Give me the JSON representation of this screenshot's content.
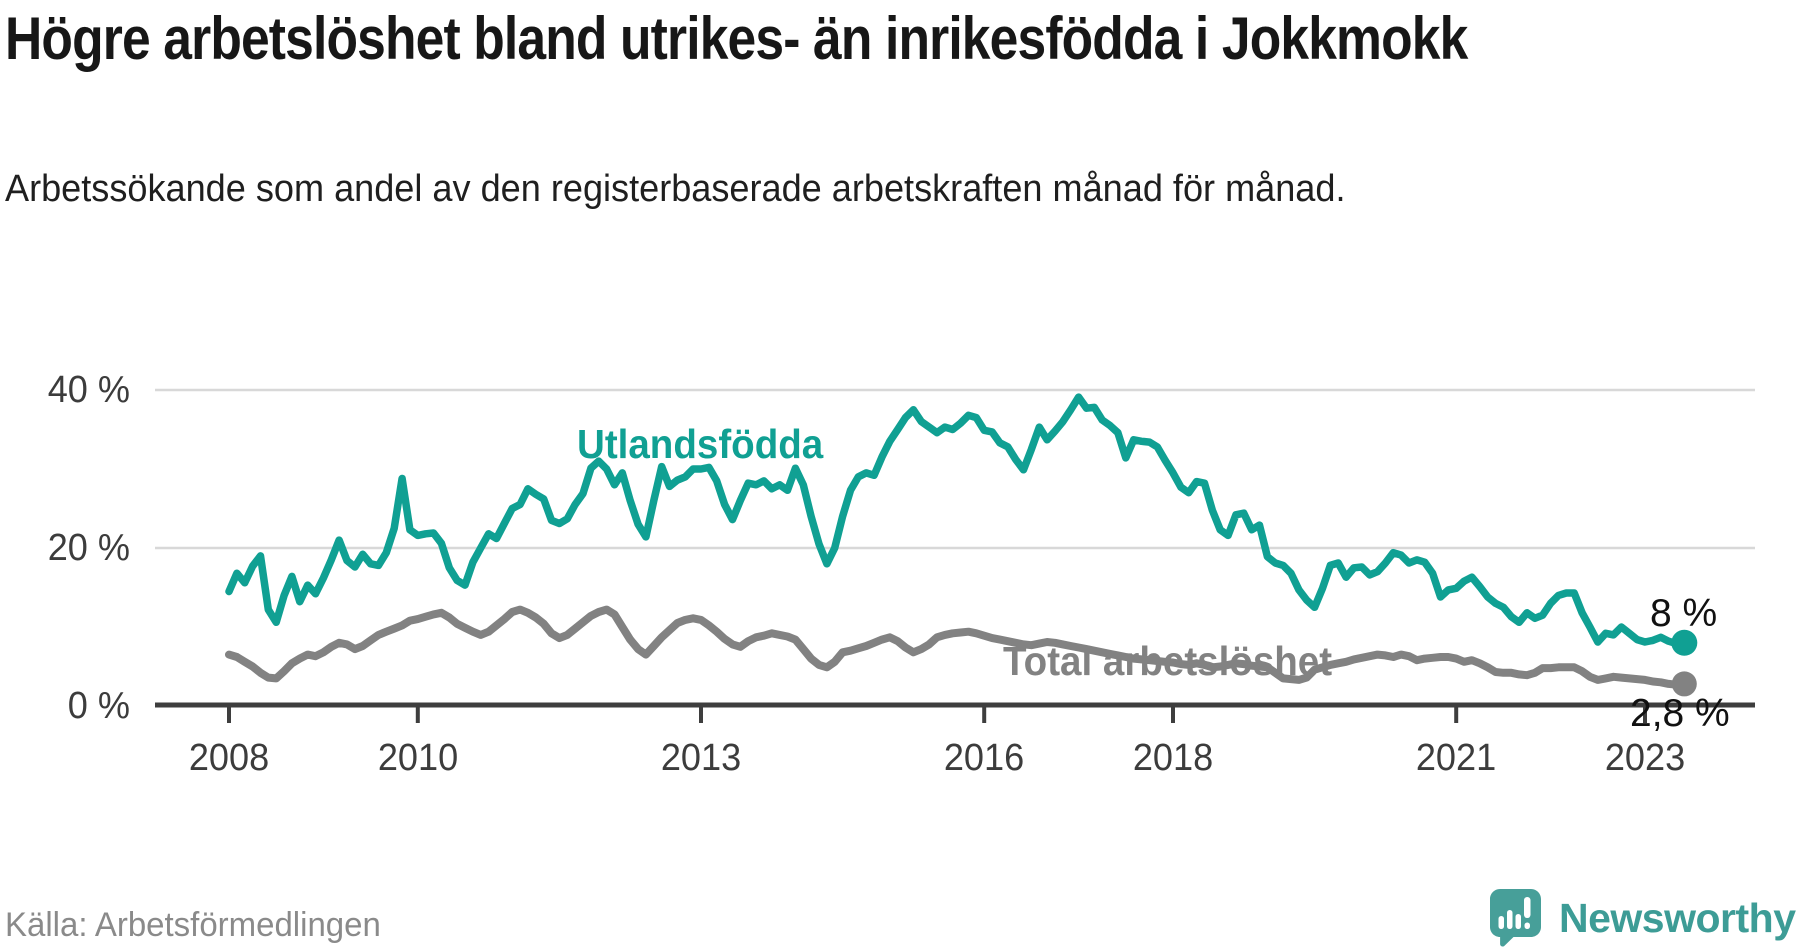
{
  "title": "Högre arbetslöshet bland utrikes- än inrikesfödda i Jokkmokk",
  "subtitle": "Arbetssökande som andel av den registerbaserade arbetskraften månad för månad.",
  "source": "Källa: Arbetsförmedlingen",
  "brand": {
    "name": "Newsworthy",
    "icon_color": "#479f99",
    "text_color": "#3d9c96"
  },
  "colors": {
    "foreign_line": "#10a093",
    "total_line": "#828282",
    "grid": "#d8d8d8",
    "axis": "#3e3e3e",
    "text": "#171717",
    "annotation": "#111111"
  },
  "chart_data": {
    "type": "line",
    "title": "Högre arbetslöshet bland utrikes- än inrikesfödda i Jokkmokk",
    "subtitle": "Arbetssökande som andel av den registerbaserade arbetskraften månad för månad.",
    "unit": "percent of registered labour force",
    "frequency": "monthly",
    "x_start": "2008-01",
    "x_end": "2023-06",
    "ylim": [
      0,
      42
    ],
    "grid": "horizontal",
    "legend_position": "inline-labels",
    "y_ticks": [
      {
        "value": 0,
        "label": "0 %"
      },
      {
        "value": 20,
        "label": "20 %"
      },
      {
        "value": 40,
        "label": "40 %"
      }
    ],
    "x_ticks": [
      {
        "year": 2008,
        "label": "2008"
      },
      {
        "year": 2010,
        "label": "2010"
      },
      {
        "year": 2013,
        "label": "2013"
      },
      {
        "year": 2016,
        "label": "2016"
      },
      {
        "year": 2018,
        "label": "2018"
      },
      {
        "year": 2021,
        "label": "2021"
      },
      {
        "year": 2023,
        "label": "2023"
      }
    ],
    "series": [
      {
        "name": "Utlandsfödda",
        "color": "#10a093",
        "end_label": "8 %",
        "end_value": 8.0,
        "values": [
          14.5,
          16.8,
          15.6,
          17.7,
          19.0,
          12.2,
          10.6,
          14.0,
          16.4,
          13.2,
          15.3,
          14.2,
          16.2,
          18.5,
          21.0,
          18.4,
          17.6,
          19.2,
          18.0,
          17.8,
          19.4,
          22.5,
          28.8,
          22.3,
          21.6,
          21.8,
          21.9,
          20.6,
          17.5,
          15.9,
          15.3,
          18.2,
          20.0,
          21.8,
          21.2,
          23.1,
          25.0,
          25.5,
          27.5,
          26.8,
          26.2,
          23.5,
          23.1,
          23.7,
          25.5,
          26.9,
          30.1,
          31.0,
          30.0,
          28.0,
          29.5,
          26.0,
          23.0,
          21.4,
          26.0,
          30.3,
          27.8,
          28.6,
          29.0,
          30.0,
          30.0,
          30.2,
          28.5,
          25.5,
          23.6,
          26.0,
          28.2,
          28.0,
          28.5,
          27.5,
          28.0,
          27.3,
          30.1,
          28.0,
          24.0,
          20.5,
          18.0,
          20.0,
          24.0,
          27.3,
          29.0,
          29.5,
          29.2,
          31.5,
          33.5,
          35.0,
          36.5,
          37.5,
          36.0,
          35.3,
          34.6,
          35.3,
          35.0,
          35.8,
          36.8,
          36.5,
          34.9,
          34.7,
          33.3,
          32.8,
          31.2,
          29.9,
          32.5,
          35.3,
          33.7,
          34.8,
          36.0,
          37.5,
          39.1,
          37.7,
          37.8,
          36.2,
          35.5,
          34.6,
          31.4,
          33.7,
          33.5,
          33.4,
          32.8,
          31.1,
          29.5,
          27.7,
          27.0,
          28.4,
          28.2,
          24.8,
          22.3,
          21.6,
          24.2,
          24.4,
          22.3,
          22.9,
          18.9,
          18.1,
          17.8,
          16.8,
          14.7,
          13.4,
          12.5,
          14.9,
          17.8,
          18.1,
          16.3,
          17.5,
          17.6,
          16.6,
          17.0,
          18.1,
          19.4,
          19.1,
          18.1,
          18.5,
          18.2,
          16.8,
          13.8,
          14.7,
          14.9,
          15.8,
          16.3,
          15.1,
          13.8,
          13.0,
          12.5,
          11.3,
          10.6,
          11.8,
          11.1,
          11.5,
          13.0,
          14.0,
          14.3,
          14.3,
          11.8,
          10.0,
          8.1,
          9.2,
          9.0,
          10.0,
          9.2,
          8.4,
          8.1,
          8.3,
          8.7,
          8.2,
          7.9,
          8.0
        ]
      },
      {
        "name": "Total arbetslöshet",
        "color": "#828282",
        "end_label": "2,8 %",
        "end_value": 2.8,
        "values": [
          6.5,
          6.2,
          5.6,
          5.0,
          4.2,
          3.6,
          3.5,
          4.4,
          5.4,
          6.0,
          6.5,
          6.3,
          6.8,
          7.5,
          8.0,
          7.8,
          7.2,
          7.6,
          8.3,
          9.0,
          9.4,
          9.8,
          10.2,
          10.8,
          11.0,
          11.3,
          11.6,
          11.8,
          11.2,
          10.4,
          9.9,
          9.4,
          9.0,
          9.4,
          10.2,
          11.0,
          11.9,
          12.2,
          11.8,
          11.2,
          10.4,
          9.2,
          8.6,
          9.0,
          9.8,
          10.6,
          11.4,
          11.9,
          12.2,
          11.6,
          10.0,
          8.4,
          7.2,
          6.5,
          7.6,
          8.7,
          9.6,
          10.5,
          10.9,
          11.1,
          10.9,
          10.2,
          9.4,
          8.5,
          7.8,
          7.5,
          8.2,
          8.7,
          8.9,
          9.2,
          9.0,
          8.8,
          8.4,
          7.2,
          6.0,
          5.2,
          4.9,
          5.6,
          6.8,
          7.0,
          7.3,
          7.6,
          8.0,
          8.4,
          8.7,
          8.2,
          7.4,
          6.8,
          7.2,
          7.8,
          8.7,
          9.0,
          9.2,
          9.3,
          9.4,
          9.2,
          8.9,
          8.6,
          8.4,
          8.2,
          8.0,
          7.8,
          7.7,
          7.9,
          8.1,
          8.0,
          7.8,
          7.6,
          7.4,
          7.2,
          7.0,
          6.8,
          6.6,
          6.4,
          6.2,
          6.0,
          5.9,
          5.8,
          5.7,
          5.6,
          5.5,
          5.3,
          5.2,
          5.4,
          5.2,
          4.9,
          5.0,
          5.2,
          5.4,
          5.3,
          5.1,
          5.0,
          4.9,
          4.2,
          3.5,
          3.4,
          3.3,
          3.6,
          4.6,
          4.9,
          5.2,
          5.4,
          5.6,
          5.9,
          6.1,
          6.3,
          6.5,
          6.4,
          6.2,
          6.5,
          6.3,
          5.8,
          6.0,
          6.1,
          6.2,
          6.2,
          6.0,
          5.6,
          5.8,
          5.4,
          4.9,
          4.3,
          4.2,
          4.2,
          4.0,
          3.9,
          4.2,
          4.8,
          4.8,
          4.9,
          4.9,
          4.9,
          4.4,
          3.7,
          3.3,
          3.5,
          3.7,
          3.6,
          3.5,
          3.4,
          3.3,
          3.1,
          3.0,
          2.8,
          2.7,
          2.8
        ]
      }
    ]
  }
}
